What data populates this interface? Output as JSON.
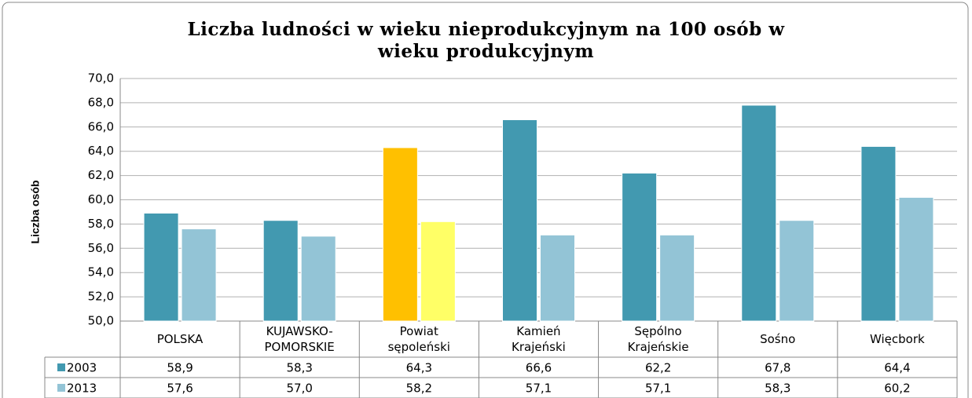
{
  "chart_data": {
    "type": "bar",
    "title": "Liczba ludności w wieku nieprodukcyjnym na 100 osób w\nwieku produkcyjnym",
    "y_label": "Liczba osób",
    "categories": [
      "POLSKA",
      "KUJAWSKO-\nPOMORSKIE",
      "Powiat\nsępoleński",
      "Kamień\nKrajeński",
      "Sępólno\nKrajeńskie",
      "Sośno",
      "Więcbork"
    ],
    "series": [
      {
        "name": "2003",
        "color": "#4299b0",
        "colors": [
          "#4299b0",
          "#4299b0",
          "#ffc000",
          "#4299b0",
          "#4299b0",
          "#4299b0",
          "#4299b0"
        ],
        "values": [
          58.9,
          58.3,
          64.3,
          66.6,
          62.2,
          67.8,
          64.4
        ],
        "value_labels": [
          "58,9",
          "58,3",
          "64,3",
          "66,6",
          "62,2",
          "67,8",
          "64,4"
        ]
      },
      {
        "name": "2013",
        "color": "#93c4d6",
        "colors": [
          "#93c4d6",
          "#93c4d6",
          "#ffff66",
          "#93c4d6",
          "#93c4d6",
          "#93c4d6",
          "#93c4d6"
        ],
        "values": [
          57.6,
          57.0,
          58.2,
          57.1,
          57.1,
          58.3,
          60.2
        ],
        "value_labels": [
          "57,6",
          "57,0",
          "58,2",
          "57,1",
          "57,1",
          "58,3",
          "60,2"
        ]
      }
    ],
    "ylim": [
      50,
      70
    ],
    "yticks": [
      {
        "value": 50,
        "label": "50,0"
      },
      {
        "value": 52,
        "label": "52,0"
      },
      {
        "value": 54,
        "label": "54,0"
      },
      {
        "value": 56,
        "label": "56,0"
      },
      {
        "value": 58,
        "label": "58,0"
      },
      {
        "value": 60,
        "label": "60,0"
      },
      {
        "value": 62,
        "label": "62,0"
      },
      {
        "value": 64,
        "label": "64,0"
      },
      {
        "value": 66,
        "label": "66,0"
      },
      {
        "value": 68,
        "label": "68,0"
      },
      {
        "value": 70,
        "label": "70,0"
      }
    ],
    "grid": true
  }
}
